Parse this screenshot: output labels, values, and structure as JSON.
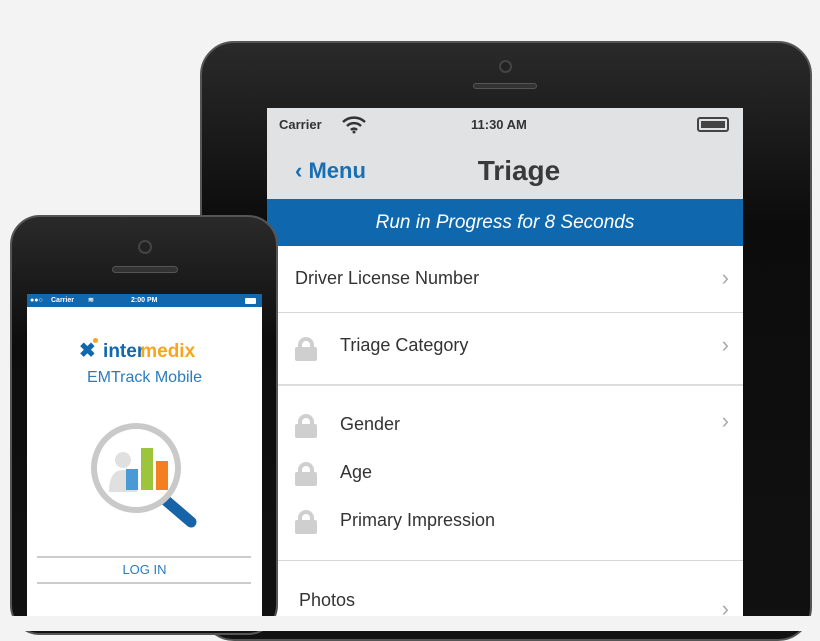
{
  "tablet": {
    "status": {
      "carrier": "Carrier",
      "time": "11:30 AM",
      "icons": [
        "wifi-icon",
        "battery-icon"
      ]
    },
    "nav": {
      "back_label": "Menu",
      "title": "Triage"
    },
    "banner": "Run in Progress for 8 Seconds",
    "rows": [
      {
        "label": "Driver License Number",
        "locked": false,
        "chevron": true
      },
      {
        "label": "Triage Category",
        "locked": true,
        "chevron": true
      },
      {
        "label": "Gender",
        "locked": true,
        "chevron": true
      },
      {
        "label": "Age",
        "locked": true,
        "chevron": false
      },
      {
        "label": "Primary Impression",
        "locked": true,
        "chevron": false
      },
      {
        "label": "Photos",
        "locked": false,
        "chevron": true
      }
    ]
  },
  "phone": {
    "status": {
      "signal": "●●○",
      "carrier": "Carrier",
      "time": "2:00 PM"
    },
    "brand": {
      "part1": "inter",
      "part2": "medix"
    },
    "app_name": "EMTrack Mobile",
    "login_label": "LOG IN"
  },
  "colors": {
    "blue": "#0f68ad",
    "orange": "#f7a51d",
    "green": "#9dc53b",
    "bar_orange": "#f47f20"
  }
}
